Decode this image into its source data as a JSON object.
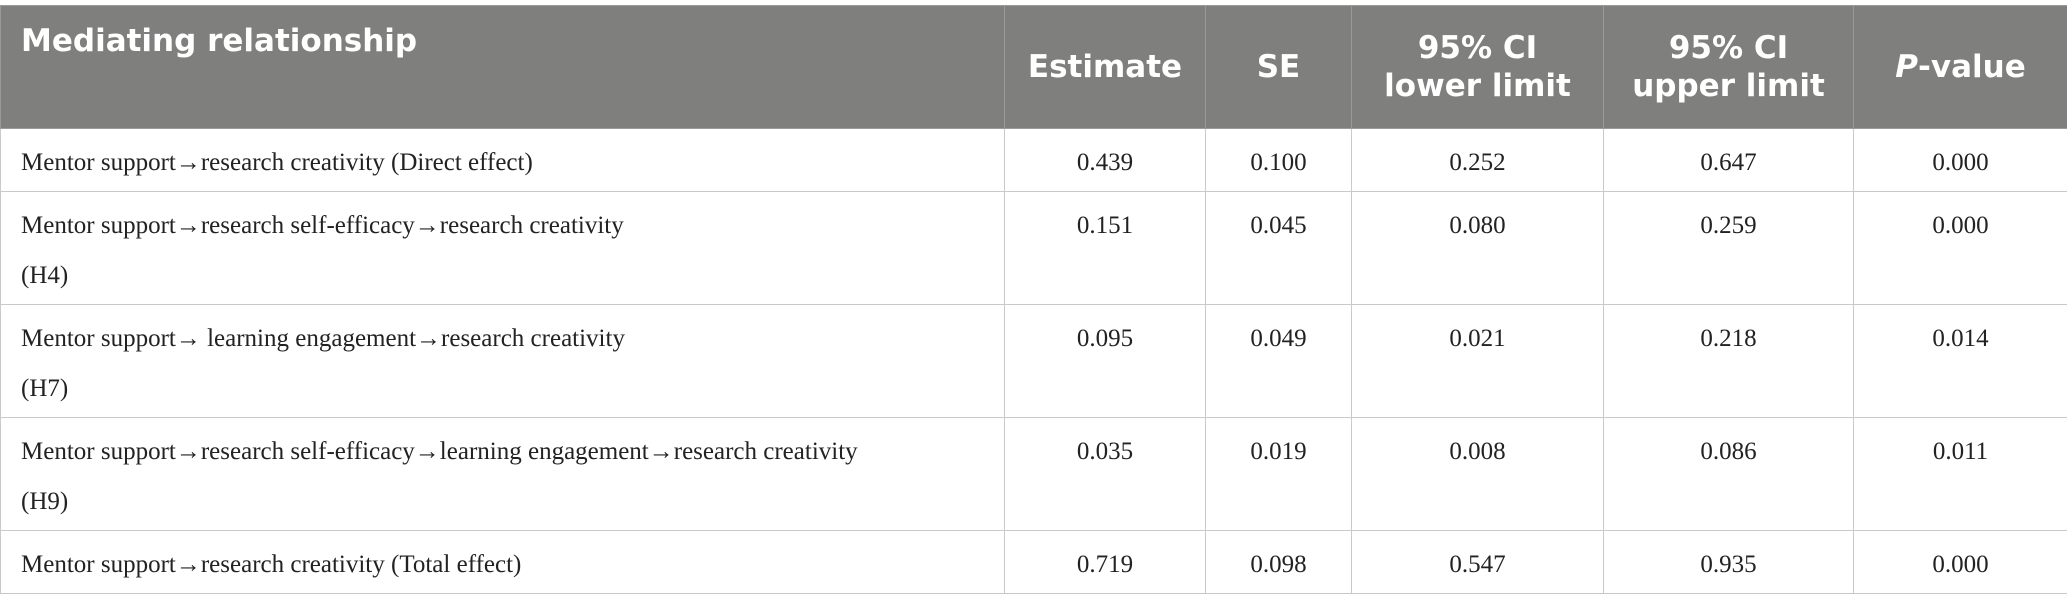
{
  "table": {
    "header": [
      "Mediating relationship",
      "Estimate",
      "SE",
      "95% CI\nlower limit",
      "95% CI\nupper limit",
      "P-value"
    ],
    "rows": [
      [
        "Mentor support→research creativity (Direct effect)",
        "0.439",
        "0.100",
        "0.252",
        "0.647",
        "0.000"
      ],
      [
        "Mentor support→research self-efficacy→research creativity\n(H4)",
        "0.151",
        "0.045",
        "0.080",
        "0.259",
        "0.000"
      ],
      [
        "Mentor support→ learning engagement→research creativity\n(H7)",
        "0.095",
        "0.049",
        "0.021",
        "0.218",
        "0.014"
      ],
      [
        "Mentor support→research self-efficacy→learning engagement→research creativity\n(H9)",
        "0.035",
        "0.019",
        "0.008",
        "0.086",
        "0.011"
      ],
      [
        "Mentor support→research creativity (Total effect)",
        "0.719",
        "0.098",
        "0.547",
        "0.935",
        "0.000"
      ]
    ]
  }
}
